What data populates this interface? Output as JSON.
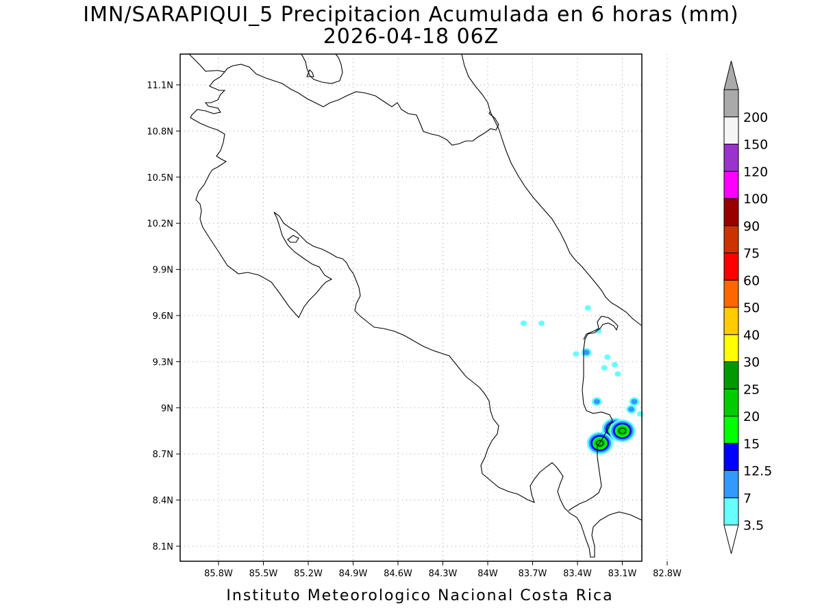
{
  "title": "IMN/SARAPIQUI_5 Precipitacion Acumulada en 6 horas (mm)",
  "subtitle": "2026-04-18 06Z",
  "footer": "Instituto Meteorologico Nacional Costa Rica",
  "x_ticks": [
    "85.8W",
    "85.5W",
    "85.2W",
    "84.9W",
    "84.6W",
    "84.3W",
    "84W",
    "83.7W",
    "83.4W",
    "83.1W",
    "82.8W"
  ],
  "y_ticks": [
    "11.1N",
    "10.8N",
    "10.5N",
    "10.2N",
    "9.9N",
    "9.6N",
    "9.3N",
    "9N",
    "8.7N",
    "8.4N",
    "8.1N"
  ],
  "legend": {
    "labels": [
      "3.5",
      "7",
      "12.5",
      "15",
      "20",
      "25",
      "30",
      "40",
      "50",
      "60",
      "75",
      "90",
      "100",
      "120",
      "150",
      "200"
    ],
    "colors": [
      "#66ffff",
      "#3399ff",
      "#0000ff",
      "#00ff00",
      "#00cc00",
      "#009900",
      "#ffff00",
      "#ffcc00",
      "#ff6600",
      "#ff0000",
      "#cc3300",
      "#990000",
      "#ff00ff",
      "#9933cc",
      "#f5f5f5",
      "#aaaaaa"
    ]
  },
  "precip_cells": [
    {
      "lon": -83.33,
      "lat": 9.65,
      "level": 0
    },
    {
      "lon": -83.26,
      "lat": 9.5,
      "level": 0
    },
    {
      "lon": -83.34,
      "lat": 9.36,
      "level": 1
    },
    {
      "lon": -83.41,
      "lat": 9.35,
      "level": 0
    },
    {
      "lon": -83.2,
      "lat": 9.33,
      "level": 0
    },
    {
      "lon": -83.15,
      "lat": 9.28,
      "level": 0
    },
    {
      "lon": -83.22,
      "lat": 9.26,
      "level": 0
    },
    {
      "lon": -83.13,
      "lat": 9.22,
      "level": 0
    },
    {
      "lon": -83.27,
      "lat": 9.04,
      "level": 1
    },
    {
      "lon": -83.02,
      "lat": 9.04,
      "level": 1
    },
    {
      "lon": -83.04,
      "lat": 8.99,
      "level": 1
    },
    {
      "lon": -82.98,
      "lat": 8.96,
      "level": 0
    },
    {
      "lon": -83.15,
      "lat": 8.86,
      "level": 4
    },
    {
      "lon": -83.1,
      "lat": 8.85,
      "level": 4
    },
    {
      "lon": -83.25,
      "lat": 8.77,
      "level": 4
    },
    {
      "lon": -83.64,
      "lat": 9.55,
      "level": 0
    },
    {
      "lon": -83.76,
      "lat": 9.55,
      "level": 0
    }
  ]
}
